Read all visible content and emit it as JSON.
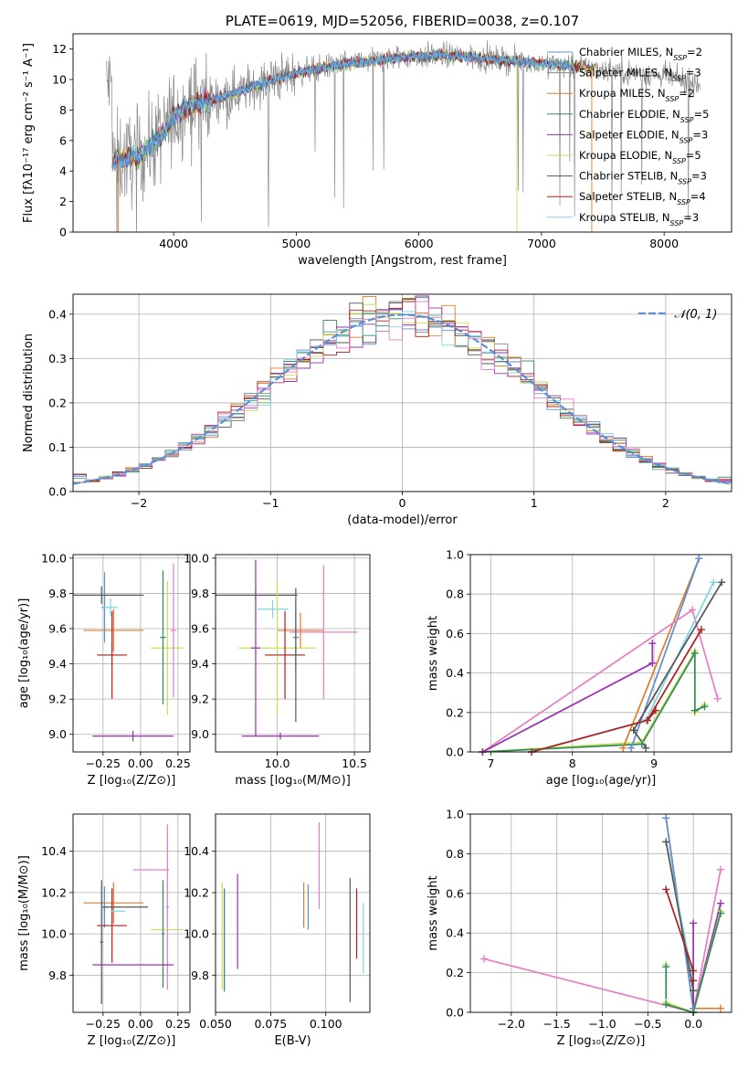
{
  "colors": {
    "chabrier_miles": "#5a8fd6",
    "salpeter_miles": "#8a8a8a",
    "kroupa_miles": "#e07b28",
    "chabrier_elodie": "#2e8b57",
    "salpeter_elodie": "#9b30b0",
    "kroupa_elodie": "#c6e05a",
    "chabrier_stelib": "#555555",
    "salpeter_stelib": "#b01c1c",
    "kroupa_stelib": "#7fd6e0",
    "pink": "#e57fbf",
    "normal": "#5b8fd6",
    "grid": "#b0b0b0"
  },
  "chart_data": [
    {
      "id": "spectrum",
      "type": "line",
      "title": "PLATE=0619, MJD=52056, FIBERID=0038, z=0.107",
      "xlabel": "wavelength [Angstrom, rest frame]",
      "ylabel": "Flux [fλ10⁻¹⁷ erg cm⁻² s⁻¹ A⁻¹]",
      "xlim": [
        3180,
        8550
      ],
      "ylim": [
        0,
        13
      ],
      "xticks": [
        "4000",
        "5000",
        "6000",
        "7000",
        "8000"
      ],
      "xtick_values": [
        4000,
        5000,
        6000,
        7000,
        8000
      ],
      "yticks": [
        "0",
        "2",
        "4",
        "6",
        "8",
        "10",
        "12"
      ],
      "ytick_values": [
        0,
        2,
        4,
        6,
        8,
        10,
        12
      ],
      "legend_position": "top-right",
      "legend": [
        "Chabrier MILES, N_SSP=2",
        "Salpeter MILES, N_SSP=3",
        "Kroupa MILES, N_SSP=2",
        "Chabrier ELODIE, N_SSP=5",
        "Salpeter ELODIE, N_SSP=3",
        "Kroupa ELODIE, N_SSP=5",
        "Chabrier STELIB, N_SSP=3",
        "Salpeter STELIB, N_SSP=4",
        "Kroupa STELIB, N_SSP=3"
      ],
      "legend_labels": [
        {
          "pre": "Chabrier MILES, N",
          "sub": "SSP",
          "post": "=2"
        },
        {
          "pre": "Salpeter MILES, N",
          "sub": "SSP",
          "post": "=3"
        },
        {
          "pre": "Kroupa MILES, N",
          "sub": "SSP",
          "post": "=2"
        },
        {
          "pre": "Chabrier ELODIE, N",
          "sub": "SSP",
          "post": "=5"
        },
        {
          "pre": "Salpeter ELODIE, N",
          "sub": "SSP",
          "post": "=3"
        },
        {
          "pre": "Kroupa ELODIE, N",
          "sub": "SSP",
          "post": "=5"
        },
        {
          "pre": "Chabrier STELIB, N",
          "sub": "SSP",
          "post": "=3"
        },
        {
          "pre": "Salpeter STELIB, N",
          "sub": "SSP",
          "post": "=4"
        },
        {
          "pre": "Kroupa STELIB, N",
          "sub": "SSP",
          "post": "=3"
        }
      ],
      "data_color": "salpeter_miles",
      "series_colors": [
        "chabrier_miles",
        "salpeter_miles",
        "kroupa_miles",
        "chabrier_elodie",
        "salpeter_elodie",
        "kroupa_elodie",
        "chabrier_stelib",
        "salpeter_stelib",
        "kroupa_stelib"
      ],
      "continuum": {
        "x": [
          3500,
          3700,
          3900,
          4000,
          4100,
          4300,
          4500,
          4700,
          4900,
          5100,
          5300,
          5600,
          5900,
          6200,
          6500,
          6800,
          7100,
          7400,
          7700,
          8000,
          8300
        ],
        "y": [
          4.7,
          4.9,
          6.3,
          7.6,
          8.2,
          8.6,
          9.1,
          9.7,
          10.2,
          10.6,
          10.9,
          11.2,
          11.5,
          11.6,
          11.4,
          11.2,
          11.0,
          10.8,
          10.5,
          10.2,
          9.7
        ]
      },
      "model_xrange": [
        3500,
        7450
      ],
      "data_xrange": [
        3450,
        8300
      ]
    },
    {
      "id": "residuals",
      "type": "histogram",
      "xlabel": "(data-model)/error",
      "ylabel": "Normed distribution",
      "xlim": [
        -2.5,
        2.5
      ],
      "ylim": [
        0,
        0.445
      ],
      "xticks": [
        "−2",
        "−1",
        "0",
        "1",
        "2"
      ],
      "xtick_values": [
        -2,
        -1,
        0,
        1,
        2
      ],
      "yticks": [
        "0.0",
        "0.1",
        "0.2",
        "0.3",
        "0.4"
      ],
      "ytick_values": [
        0,
        0.1,
        0.2,
        0.3,
        0.4
      ],
      "legend_position": "top-right",
      "reference_curve": {
        "name": "𝒩(0, 1)",
        "mean": 0,
        "sigma": 1
      },
      "bin_width": 0.1,
      "bin_start": -2.5,
      "series_colors": [
        "chabrier_miles",
        "salpeter_miles",
        "kroupa_miles",
        "chabrier_elodie",
        "salpeter_elodie",
        "kroupa_elodie",
        "chabrier_stelib",
        "salpeter_stelib",
        "kroupa_stelib",
        "pink"
      ]
    },
    {
      "id": "age_vs_Z",
      "type": "errorbar",
      "xlabel": "Z [log₁₀(Z/Z⊙)]",
      "ylabel": "age  [log₁₀(age/yr)]",
      "xlim": [
        -0.45,
        0.33
      ],
      "ylim": [
        8.9,
        10.02
      ],
      "xticks": [
        "−0.25",
        "0.00",
        "0.25"
      ],
      "xtick_values": [
        -0.25,
        0,
        0.25
      ],
      "yticks": [
        "9.0",
        "9.2",
        "9.4",
        "9.6",
        "9.8",
        "10.0"
      ],
      "ytick_values": [
        9.0,
        9.2,
        9.4,
        9.6,
        9.8,
        10.0
      ],
      "points": [
        {
          "c": "chabrier_miles",
          "x": -0.24,
          "xerr": 0.02,
          "y": 9.72,
          "yerr": 0.2
        },
        {
          "c": "kroupa_miles",
          "x": -0.18,
          "xerr": 0.2,
          "y": 9.59,
          "yerr": 0.12
        },
        {
          "c": "salpeter_stelib",
          "x": -0.19,
          "xerr": 0.1,
          "y": 9.45,
          "yerr": 0.25
        },
        {
          "c": "chabrier_stelib",
          "x": -0.26,
          "xerr": 0.28,
          "y": 9.79,
          "yerr": 0.05
        },
        {
          "c": "kroupa_elodie",
          "x": 0.18,
          "xerr": 0.11,
          "y": 9.49,
          "yerr": 0.38
        },
        {
          "c": "salpeter_elodie",
          "x": -0.05,
          "xerr": 0.27,
          "y": 8.99,
          "yerr": 0.03
        },
        {
          "c": "pink",
          "x": 0.22,
          "xerr": 0.02,
          "y": 9.59,
          "yerr": 0.38
        },
        {
          "c": "kroupa_stelib",
          "x": -0.2,
          "xerr": 0.05,
          "y": 9.72,
          "yerr": 0.05
        },
        {
          "c": "chabrier_elodie",
          "x": 0.15,
          "xerr": 0.02,
          "y": 9.55,
          "yerr": 0.38
        }
      ]
    },
    {
      "id": "age_vs_mass",
      "type": "errorbar",
      "xlabel": "mass [log₁₀(M/M⊙)]",
      "ylabel": "",
      "xlim": [
        9.6,
        10.6
      ],
      "ylim": [
        8.9,
        10.02
      ],
      "xticks": [
        "10.0",
        "10.5"
      ],
      "xtick_values": [
        10.0,
        10.5
      ],
      "yticks": [
        "9.0",
        "9.2",
        "9.4",
        "9.6",
        "9.8",
        "10.0"
      ],
      "ytick_values": [
        9.0,
        9.2,
        9.4,
        9.6,
        9.8,
        10.0
      ],
      "points": [
        {
          "c": "chabrier_stelib",
          "x": 9.86,
          "xerr": 0.27,
          "y": 9.79,
          "yerr": 0.03
        },
        {
          "c": "kroupa_stelib",
          "x": 9.97,
          "xerr": 0.1,
          "y": 9.71,
          "yerr": 0.05
        },
        {
          "c": "kroupa_miles",
          "x": 10.15,
          "xerr": 0.15,
          "y": 9.59,
          "yerr": 0.1
        },
        {
          "c": "pink",
          "x": 10.3,
          "xerr": 0.22,
          "y": 9.58,
          "yerr": 0.38
        },
        {
          "c": "kroupa_elodie",
          "x": 10.0,
          "xerr": 0.25,
          "y": 9.49,
          "yerr": 0.38
        },
        {
          "c": "salpeter_stelib",
          "x": 10.05,
          "xerr": 0.13,
          "y": 9.45,
          "yerr": 0.25
        },
        {
          "c": "salpeter_elodie",
          "x": 9.86,
          "xerr": 0.03,
          "y": 9.49,
          "yerr": 0.5
        },
        {
          "c": "salpeter_elodie",
          "x": 10.02,
          "xerr": 0.25,
          "y": 8.99,
          "yerr": 0.02
        },
        {
          "c": "chabrier_miles",
          "x": 10.12,
          "xerr": 0.02,
          "y": 9.55,
          "yerr": 0.2
        },
        {
          "c": "chabrier_stelib",
          "x": 10.12,
          "xerr": 0.02,
          "y": 9.45,
          "yerr": 0.38
        }
      ]
    },
    {
      "id": "weight_vs_age",
      "type": "line",
      "xlabel": "age  [log₁₀(age/yr)]",
      "ylabel": "mass weight",
      "xlim": [
        6.75,
        9.95
      ],
      "ylim": [
        0,
        1
      ],
      "xticks": [
        "7",
        "8",
        "9"
      ],
      "xtick_values": [
        7,
        8,
        9
      ],
      "yticks": [
        "0.0",
        "0.2",
        "0.4",
        "0.6",
        "0.8",
        "1.0"
      ],
      "ytick_values": [
        0,
        0.2,
        0.4,
        0.6,
        0.8,
        1.0
      ],
      "series": [
        {
          "c": "kroupa_elodie",
          "x": [
            6.9,
            8.85,
            9.5,
            9.5,
            9.62
          ],
          "y": [
            0.0,
            0.05,
            0.51,
            0.2,
            0.24
          ]
        },
        {
          "c": "chabrier_elodie",
          "x": [
            6.9,
            8.85,
            9.5,
            9.5,
            9.62
          ],
          "y": [
            0.0,
            0.04,
            0.5,
            0.21,
            0.23
          ]
        },
        {
          "c": "kroupa_miles",
          "x": [
            8.62,
            9.55
          ],
          "y": [
            0.02,
            0.98
          ]
        },
        {
          "c": "chabrier_miles",
          "x": [
            8.72,
            9.55
          ],
          "y": [
            0.02,
            0.98
          ]
        },
        {
          "c": "pink",
          "x": [
            6.9,
            9.47,
            9.78
          ],
          "y": [
            0.0,
            0.72,
            0.27
          ]
        },
        {
          "c": "salpeter_elodie",
          "x": [
            6.9,
            8.98,
            8.98
          ],
          "y": [
            0.0,
            0.45,
            0.55
          ]
        },
        {
          "c": "kroupa_stelib",
          "x": [
            7.5,
            8.9,
            9.73
          ],
          "y": [
            0.0,
            0.16,
            0.86
          ]
        },
        {
          "c": "chabrier_stelib",
          "x": [
            8.9,
            8.75,
            9.83
          ],
          "y": [
            0.02,
            0.11,
            0.86
          ]
        },
        {
          "c": "salpeter_stelib",
          "x": [
            7.5,
            8.92,
            9.58
          ],
          "y": [
            0.0,
            0.16,
            0.62
          ]
        },
        {
          "c": "salpeter_stelib",
          "x": [
            8.92,
            9.02
          ],
          "y": [
            0.16,
            0.21
          ]
        }
      ]
    },
    {
      "id": "mass_vs_Z",
      "type": "errorbar",
      "xlabel": "Z [log₁₀(Z/Z⊙)]",
      "ylabel": "mass [log₁₀(M/M⊙)]",
      "xlim": [
        -0.45,
        0.33
      ],
      "ylim": [
        9.62,
        10.58
      ],
      "xticks": [
        "−0.25",
        "0.00",
        "0.25"
      ],
      "xtick_values": [
        -0.25,
        0,
        0.25
      ],
      "yticks": [
        "9.8",
        "10.0",
        "10.2",
        "10.4"
      ],
      "ytick_values": [
        9.8,
        10.0,
        10.2,
        10.4
      ],
      "points": [
        {
          "c": "kroupa_miles",
          "x": -0.18,
          "xerr": 0.2,
          "y": 10.15,
          "yerr": 0.1
        },
        {
          "c": "chabrier_miles",
          "x": -0.24,
          "xerr": 0.02,
          "y": 10.13,
          "yerr": 0.1
        },
        {
          "c": "salpeter_stelib",
          "x": -0.19,
          "xerr": 0.1,
          "y": 10.04,
          "yerr": 0.18
        },
        {
          "c": "chabrier_stelib",
          "x": -0.1,
          "xerr": 0.15,
          "y": 10.13,
          "yerr": 0.0
        },
        {
          "c": "chabrier_stelib",
          "x": -0.26,
          "xerr": 0.01,
          "y": 9.96,
          "yerr": 0.3
        },
        {
          "c": "kroupa_stelib",
          "x": -0.15,
          "xerr": 0.05,
          "y": 10.11,
          "yerr": 0.0
        },
        {
          "c": "pink",
          "x": 0.07,
          "xerr": 0.12,
          "y": 10.31,
          "yerr": 0.0
        },
        {
          "c": "pink",
          "x": 0.18,
          "xerr": 0.01,
          "y": 10.13,
          "yerr": 0.4
        },
        {
          "c": "kroupa_elodie",
          "x": 0.18,
          "xerr": 0.11,
          "y": 10.02,
          "yerr": 0.0
        },
        {
          "c": "chabrier_elodie",
          "x": 0.15,
          "xerr": 0.01,
          "y": 10.0,
          "yerr": 0.26
        },
        {
          "c": "salpeter_elodie",
          "x": -0.05,
          "xerr": 0.27,
          "y": 9.85,
          "yerr": 0.0
        }
      ]
    },
    {
      "id": "mass_vs_ebv",
      "type": "errorbar",
      "xlabel": "E(B-V)",
      "ylabel": "",
      "xlim": [
        0.05,
        0.12
      ],
      "ylim": [
        9.62,
        10.58
      ],
      "xticks": [
        "0.050",
        "0.075",
        "0.100"
      ],
      "xtick_values": [
        0.05,
        0.075,
        0.1
      ],
      "yticks": [
        "9.8",
        "10.0",
        "10.2",
        "10.4"
      ],
      "ytick_values": [
        9.8,
        10.0,
        10.2,
        10.4
      ],
      "points": [
        {
          "c": "kroupa_elodie",
          "x": 0.053,
          "xerr": 0,
          "y": 9.99,
          "yerr": 0.26
        },
        {
          "c": "chabrier_elodie",
          "x": 0.054,
          "xerr": 0,
          "y": 9.97,
          "yerr": 0.25
        },
        {
          "c": "salpeter_elodie",
          "x": 0.06,
          "xerr": 0,
          "y": 10.06,
          "yerr": 0.23
        },
        {
          "c": "kroupa_miles",
          "x": 0.09,
          "xerr": 0,
          "y": 10.14,
          "yerr": 0.11
        },
        {
          "c": "chabrier_miles",
          "x": 0.092,
          "xerr": 0,
          "y": 10.13,
          "yerr": 0.11
        },
        {
          "c": "pink",
          "x": 0.097,
          "xerr": 0,
          "y": 10.33,
          "yerr": 0.21
        },
        {
          "c": "chabrier_stelib",
          "x": 0.111,
          "xerr": 0,
          "y": 9.97,
          "yerr": 0.3
        },
        {
          "c": "salpeter_stelib",
          "x": 0.114,
          "xerr": 0,
          "y": 10.05,
          "yerr": 0.17
        },
        {
          "c": "kroupa_stelib",
          "x": 0.117,
          "xerr": 0,
          "y": 9.98,
          "yerr": 0.17
        }
      ]
    },
    {
      "id": "weight_vs_Z",
      "type": "line",
      "xlabel": "Z [log₁₀(Z/Z⊙)]",
      "ylabel": "mass weight",
      "xlim": [
        -2.45,
        0.42
      ],
      "ylim": [
        0,
        1
      ],
      "xticks": [
        "−2.0",
        "−1.5",
        "−1.0",
        "−0.5",
        "0.0"
      ],
      "xtick_values": [
        -2.0,
        -1.5,
        -1.0,
        -0.5,
        0.0
      ],
      "yticks": [
        "0.0",
        "0.2",
        "0.4",
        "0.6",
        "0.8",
        "1.0"
      ],
      "ytick_values": [
        0,
        0.2,
        0.4,
        0.6,
        0.8,
        1.0
      ],
      "series": [
        {
          "c": "pink",
          "x": [
            -2.3,
            0.0,
            0.3
          ],
          "y": [
            0.27,
            0.0,
            0.72
          ]
        },
        {
          "c": "kroupa_miles",
          "x": [
            -0.3,
            0.0,
            0.3
          ],
          "y": [
            0.98,
            0.02,
            0.02
          ]
        },
        {
          "c": "chabrier_miles",
          "x": [
            -0.3,
            0.0
          ],
          "y": [
            0.98,
            0.02
          ]
        },
        {
          "c": "kroupa_stelib",
          "x": [
            -0.3,
            0.0,
            0.0
          ],
          "y": [
            0.86,
            0.16,
            0.0
          ]
        },
        {
          "c": "chabrier_stelib",
          "x": [
            -0.3,
            0.0,
            0.0
          ],
          "y": [
            0.86,
            0.11,
            0.0
          ]
        },
        {
          "c": "salpeter_stelib",
          "x": [
            -0.3,
            0.0,
            0.0
          ],
          "y": [
            0.62,
            0.21,
            0.16
          ]
        },
        {
          "c": "salpeter_elodie",
          "x": [
            0.0,
            0.0,
            0.3
          ],
          "y": [
            0.45,
            0.0,
            0.55
          ]
        },
        {
          "c": "kroupa_elodie",
          "x": [
            -0.3,
            -0.3,
            0.0,
            0.3
          ],
          "y": [
            0.24,
            0.05,
            0.0,
            0.51
          ]
        },
        {
          "c": "chabrier_elodie",
          "x": [
            -0.3,
            -0.3,
            0.0,
            0.3
          ],
          "y": [
            0.23,
            0.04,
            0.0,
            0.5
          ]
        }
      ]
    }
  ]
}
